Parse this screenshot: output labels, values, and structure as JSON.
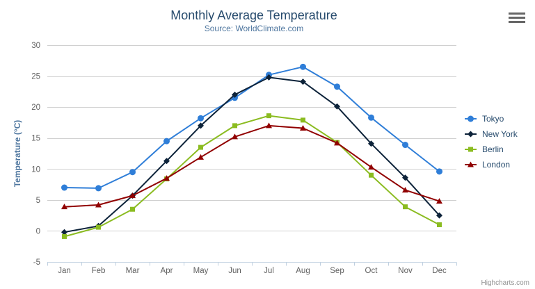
{
  "chart": {
    "title": "Monthly Average Temperature",
    "subtitle": "Source: WorldClimate.com",
    "y_axis_title": "Temperature (°C)",
    "credits": "Highcharts.com"
  },
  "colors": {
    "title": "#274b6d",
    "subtitle": "#4d759e",
    "axis_labels": "#606060",
    "gridline": "#d0d0d0",
    "axis_line": "#c0d0e0",
    "legend_text": "#274b6d",
    "credits": "#909090",
    "menu_icon": "#666666"
  },
  "chart_data": {
    "type": "line",
    "title": "Monthly Average Temperature",
    "subtitle": "Source: WorldClimate.com",
    "xlabel": "",
    "ylabel": "Temperature (°C)",
    "categories": [
      "Jan",
      "Feb",
      "Mar",
      "Apr",
      "May",
      "Jun",
      "Jul",
      "Aug",
      "Sep",
      "Oct",
      "Nov",
      "Dec"
    ],
    "ylim": [
      -5,
      30
    ],
    "ytick_step": 5,
    "grid": "horizontal",
    "legend_position": "right-middle",
    "series": [
      {
        "name": "Tokyo",
        "color": "#2f7ed8",
        "marker": "circle",
        "values": [
          7.0,
          6.9,
          9.5,
          14.5,
          18.2,
          21.5,
          25.2,
          26.5,
          23.3,
          18.3,
          13.9,
          9.6
        ]
      },
      {
        "name": "New York",
        "color": "#0d233a",
        "marker": "diamond",
        "values": [
          -0.2,
          0.8,
          5.7,
          11.3,
          17.0,
          22.0,
          24.8,
          24.1,
          20.1,
          14.1,
          8.6,
          2.5
        ]
      },
      {
        "name": "Berlin",
        "color": "#8bbc21",
        "marker": "square",
        "values": [
          -0.9,
          0.6,
          3.5,
          8.4,
          13.5,
          17.0,
          18.6,
          17.9,
          14.3,
          9.0,
          3.9,
          1.0
        ]
      },
      {
        "name": "London",
        "color": "#910000",
        "marker": "triangle",
        "values": [
          3.9,
          4.2,
          5.7,
          8.5,
          11.9,
          15.2,
          17.0,
          16.6,
          14.2,
          10.3,
          6.6,
          4.8
        ]
      }
    ]
  }
}
